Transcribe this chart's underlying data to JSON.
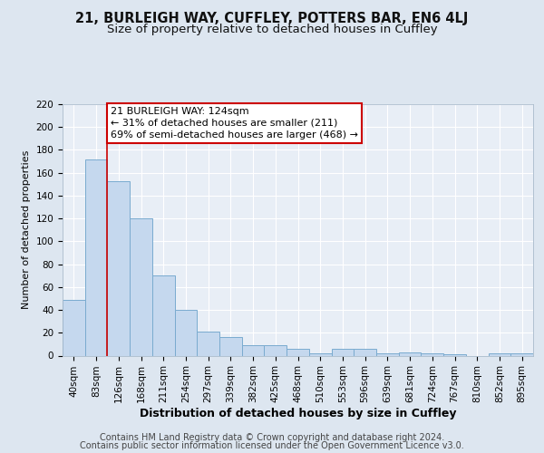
{
  "title1": "21, BURLEIGH WAY, CUFFLEY, POTTERS BAR, EN6 4LJ",
  "title2": "Size of property relative to detached houses in Cuffley",
  "xlabel": "Distribution of detached houses by size in Cuffley",
  "ylabel": "Number of detached properties",
  "categories": [
    "40sqm",
    "83sqm",
    "126sqm",
    "168sqm",
    "211sqm",
    "254sqm",
    "297sqm",
    "339sqm",
    "382sqm",
    "425sqm",
    "468sqm",
    "510sqm",
    "553sqm",
    "596sqm",
    "639sqm",
    "681sqm",
    "724sqm",
    "767sqm",
    "810sqm",
    "852sqm",
    "895sqm"
  ],
  "values": [
    49,
    172,
    153,
    120,
    70,
    40,
    21,
    16,
    9,
    9,
    6,
    2,
    6,
    6,
    2,
    3,
    2,
    1,
    0,
    2,
    2
  ],
  "bar_color": "#c5d8ee",
  "bar_edge_color": "#7aabcf",
  "bar_edge_width": 0.7,
  "property_line_idx": 2,
  "property_line_color": "#cc0000",
  "annotation_line1": "21 BURLEIGH WAY: 124sqm",
  "annotation_line2": "← 31% of detached houses are smaller (211)",
  "annotation_line3": "69% of semi-detached houses are larger (468) →",
  "annotation_box_color": "#ffffff",
  "annotation_box_edge": "#cc0000",
  "ylim": [
    0,
    220
  ],
  "yticks": [
    0,
    20,
    40,
    60,
    80,
    100,
    120,
    140,
    160,
    180,
    200,
    220
  ],
  "bg_color": "#dde6f0",
  "plot_bg_color": "#e8eef6",
  "grid_color": "#ffffff",
  "footer_line1": "Contains HM Land Registry data © Crown copyright and database right 2024.",
  "footer_line2": "Contains public sector information licensed under the Open Government Licence v3.0.",
  "title1_fontsize": 10.5,
  "title2_fontsize": 9.5,
  "xlabel_fontsize": 9,
  "ylabel_fontsize": 8,
  "tick_fontsize": 7.5,
  "annotation_fontsize": 8,
  "footer_fontsize": 7
}
